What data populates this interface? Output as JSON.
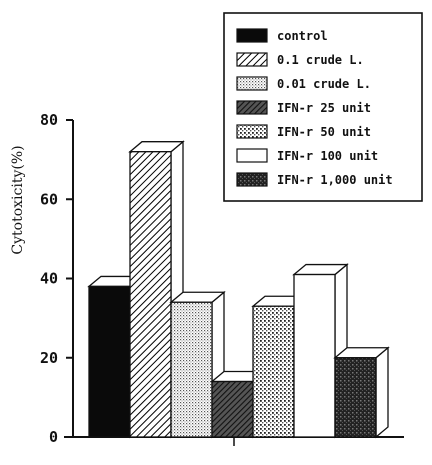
{
  "chart_data": {
    "type": "bar",
    "style": "3d",
    "categories": [
      "control",
      "0.1 crude L.",
      "0.01 crude L.",
      "IFN-r 25 unit",
      "IFN-r 50 unit",
      "IFN-r 100 unit",
      "IFN-r 1,000 unit"
    ],
    "values": [
      38,
      72,
      34,
      14,
      33,
      41,
      20
    ],
    "ylabel": "Cytotoxicity(%)",
    "xlabel": "",
    "ylim": [
      0,
      80
    ],
    "yticks": [
      0,
      20,
      40,
      60,
      80
    ],
    "legend": {
      "placement": "top-right",
      "entries": [
        "control",
        "0.1 crude L.",
        "0.01 crude L.",
        "IFN-r 25 unit",
        "IFN-r 50 unit",
        "IFN-r 100 unit",
        "IFN-r 1,000 unit"
      ]
    },
    "fills": [
      "solid-black",
      "diagonal-hatch",
      "fine-dots",
      "dense-diagonal",
      "coarse-dots",
      "white",
      "dark-crosshatch"
    ]
  }
}
